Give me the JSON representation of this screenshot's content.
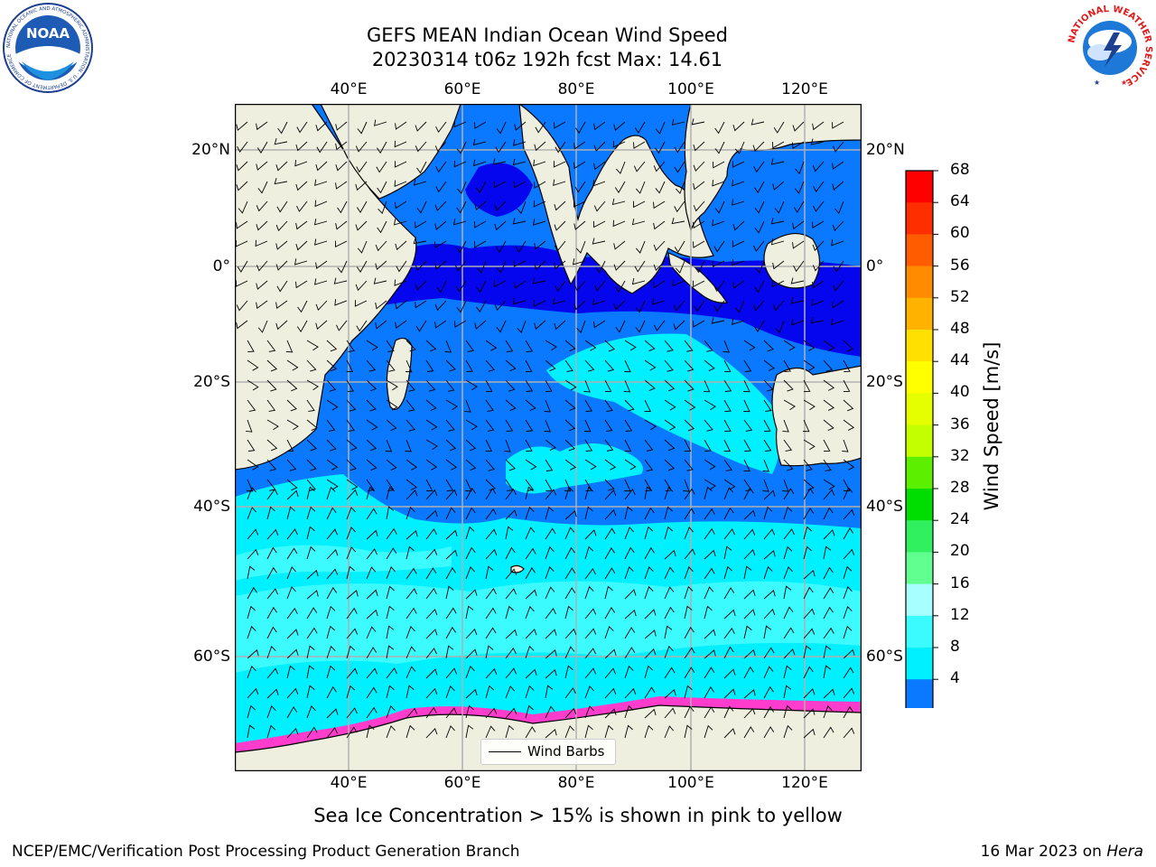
{
  "title": {
    "line1": "GEFS MEAN Indian Ocean Wind Speed",
    "line2": "20230314 t06z 192h fcst   Max: 14.61"
  },
  "logos": {
    "noara": "NOAA",
    "noaa_ring": "NATIONAL OCEANIC AND ATMOSPHERIC ADMINISTRATION · U.S. DEPARTMENT OF COMMERCE",
    "nws_ring": "NATIONAL WEATHER SERVICE"
  },
  "map": {
    "lon_labels": [
      "40°E",
      "60°E",
      "80°E",
      "100°E",
      "120°E"
    ],
    "lat_labels": [
      "20°N",
      "0°",
      "20°S",
      "40°S",
      "60°S"
    ],
    "lon_range": [
      20,
      130
    ],
    "lat_range": [
      -75,
      28
    ],
    "colors": {
      "land": "#efefdf",
      "band_4_8": "#0a78ff",
      "band_below_4": "#0505ee",
      "band_8_12": "#00f0ff",
      "band_12_16": "#3cfbff",
      "ice": "#ff3ccc"
    }
  },
  "colorbar": {
    "label": "Wind Speed [m/s]",
    "ticks": [
      "68",
      "64",
      "60",
      "56",
      "52",
      "48",
      "44",
      "40",
      "36",
      "32",
      "28",
      "24",
      "20",
      "16",
      "12",
      "8",
      "4"
    ],
    "colors": [
      "#ff0000",
      "#ff2e00",
      "#ff5c00",
      "#ff8c00",
      "#ffb200",
      "#ffe000",
      "#ffff00",
      "#e6ff00",
      "#c4ff00",
      "#5cf000",
      "#00dd00",
      "#30f060",
      "#60ff90",
      "#a8ffff",
      "#3cfbff",
      "#00f0ff",
      "#0a78ff"
    ],
    "extend_color": "#0505ee"
  },
  "legend": {
    "label": "Wind Barbs"
  },
  "caption": "Sea Ice Concentration > 15% is shown in pink to yellow",
  "footer": {
    "left": "NCEP/EMC/Verification Post Processing Product Generation Branch",
    "right_prefix": "16 Mar 2023 on ",
    "right_host": "Hera"
  }
}
